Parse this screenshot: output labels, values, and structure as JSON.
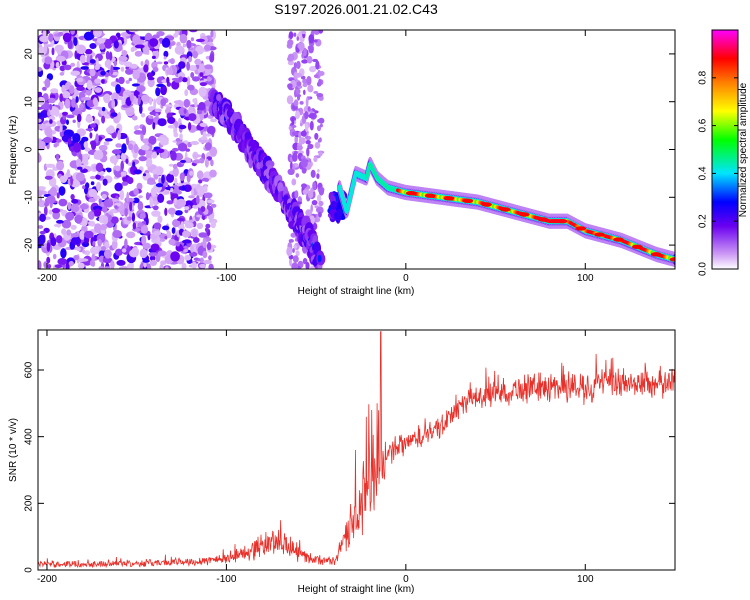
{
  "chart_data": [
    {
      "type": "heatmap",
      "title": "S197.2026.001.21.02.C43",
      "xlabel": "Height of straight line (km)",
      "ylabel": "Frequency (Hz)",
      "xlim": [
        -205,
        150
      ],
      "ylim": [
        -25,
        25
      ],
      "x_ticks": [
        -200,
        -100,
        0,
        100
      ],
      "y_ticks": [
        -20,
        -10,
        0,
        10,
        20
      ],
      "colorbar": {
        "label": "Normalized spectral amplitude",
        "range": [
          0,
          1
        ],
        "ticks": [
          0.0,
          0.2,
          0.4,
          0.6,
          0.8
        ],
        "tick_labels": [
          "0.0",
          "0.2",
          "0.4",
          "0.6",
          "0.8"
        ],
        "colors": [
          "#ffffff",
          "#cf9df5",
          "#6a00f0",
          "#0000ff",
          "#00e5ff",
          "#00ff00",
          "#ffff00",
          "#ff7f00",
          "#ff0000",
          "#ff00ff"
        ]
      },
      "noise_region": {
        "x_range": [
          -205,
          -107
        ],
        "freq_range": [
          -25,
          25
        ]
      },
      "sparse_noise_band": {
        "x_range": [
          -65,
          -47
        ],
        "freq_range": [
          -25,
          25
        ]
      },
      "ridge_segments": [
        {
          "points": [
            [
              -107,
              10
            ],
            [
              -95,
              5
            ],
            [
              -85,
              -1
            ],
            [
              -75,
              -6
            ],
            [
              -65,
              -12
            ],
            [
              -55,
              -18
            ],
            [
              -48,
              -23
            ]
          ]
        },
        {
          "points": [
            [
              -37,
              -8
            ],
            [
              -33,
              -13
            ],
            [
              -28,
              -5
            ],
            [
              -22,
              -6
            ],
            [
              -20,
              -3
            ],
            [
              -16,
              -6
            ],
            [
              -10,
              -8
            ],
            [
              0,
              -9
            ],
            [
              20,
              -10
            ],
            [
              40,
              -11
            ],
            [
              60,
              -13
            ],
            [
              80,
              -15
            ],
            [
              90,
              -15
            ],
            [
              100,
              -17
            ],
            [
              120,
              -19
            ],
            [
              140,
              -22
            ],
            [
              150,
              -23
            ]
          ]
        }
      ]
    },
    {
      "type": "line",
      "xlabel": "Height of straight line (km)",
      "ylabel": "SNR (10 * v/v)",
      "xlim": [
        -205,
        150
      ],
      "ylim": [
        0,
        720
      ],
      "x_ticks": [
        -200,
        -100,
        0,
        100
      ],
      "y_ticks": [
        0,
        200,
        400,
        600
      ],
      "series": [
        {
          "name": "SNR",
          "color": "#e8302a",
          "envelope": {
            "x": [
              -205,
              -180,
              -150,
              -120,
              -100,
              -90,
              -80,
              -70,
              -60,
              -50,
              -40,
              -30,
              -25,
              -20,
              -15,
              -10,
              0,
              10,
              20,
              30,
              40,
              60,
              80,
              100,
              120,
              150
            ],
            "mean": [
              18,
              18,
              20,
              25,
              35,
              50,
              75,
              90,
              50,
              30,
              25,
              130,
              200,
              250,
              280,
              340,
              380,
              400,
              430,
              490,
              520,
              540,
              550,
              550,
              560,
              560
            ],
            "spread": [
              12,
              12,
              12,
              15,
              20,
              30,
              45,
              55,
              30,
              15,
              15,
              80,
              120,
              140,
              120,
              60,
              40,
              40,
              40,
              40,
              45,
              50,
              55,
              60,
              55,
              55
            ]
          },
          "spikes": [
            [
              -14,
              715
            ],
            [
              -28,
              360
            ],
            [
              -22,
              460
            ],
            [
              -19,
              480
            ],
            [
              -16,
              500
            ]
          ]
        }
      ]
    }
  ]
}
